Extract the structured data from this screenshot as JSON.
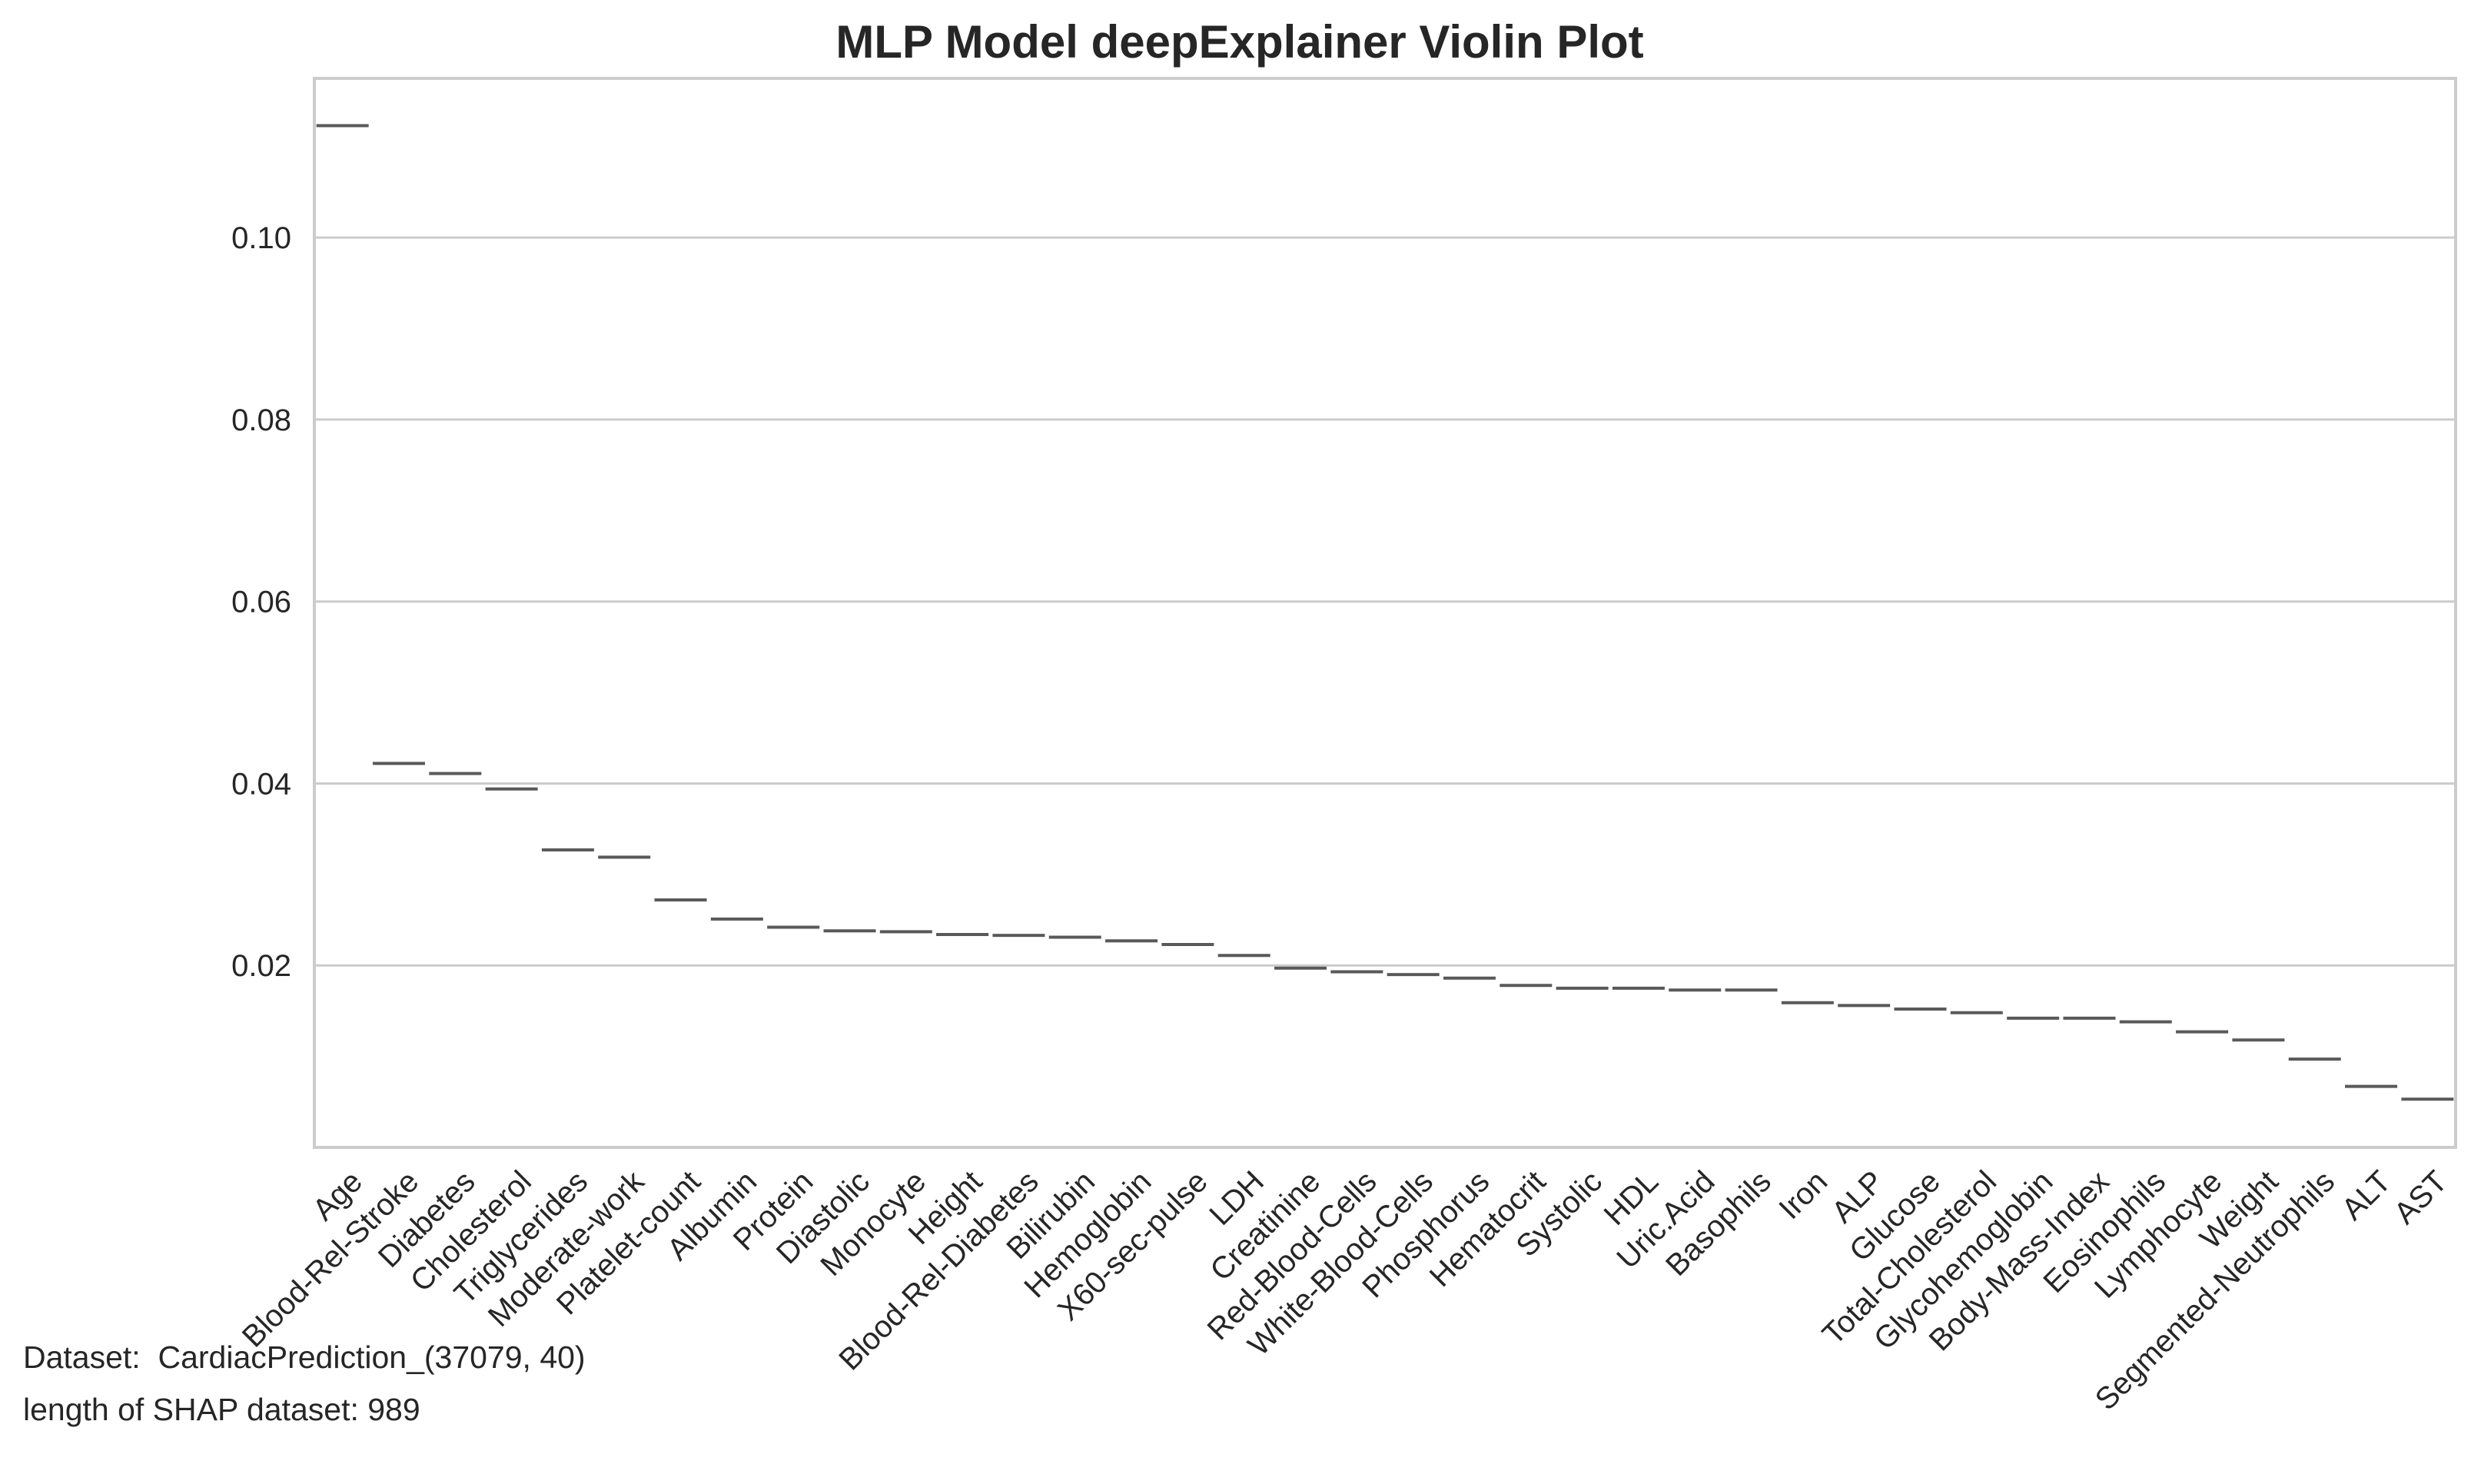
{
  "chart_data": {
    "type": "violin",
    "title": "MLP Model deepExplainer Violin Plot",
    "xlabel": "",
    "ylabel": "",
    "grid": true,
    "ylim": [
      0.0,
      0.1175
    ],
    "yticks": [
      0.02,
      0.04,
      0.06,
      0.08,
      0.1
    ],
    "ytick_labels": [
      "0.02",
      "0.04",
      "0.06",
      "0.08",
      "0.10"
    ],
    "categories": [
      "Age",
      "Blood-Rel-Stroke",
      "Diabetes",
      "Cholesterol",
      "Triglycerides",
      "Moderate-work",
      "Platelet-count",
      "Albumin",
      "Protein",
      "Diastolic",
      "Monocyte",
      "Height",
      "Blood-Rel-Diabetes",
      "Bilirubin",
      "Hemoglobin",
      "X60-sec-pulse",
      "LDH",
      "Creatinine",
      "Red-Blood-Cells",
      "White-Blood-Cells",
      "Phosphorus",
      "Hematocrit",
      "Systolic",
      "HDL",
      "Uric.Acid",
      "Basophils",
      "Iron",
      "ALP",
      "Glucose",
      "Total-Cholesterol",
      "Glycohemoglobin",
      "Body-Mass-Index",
      "Eosinophils",
      "Lymphocyte",
      "Weight",
      "Segmented-Neutrophils",
      "ALT",
      "AST"
    ],
    "values": [
      0.1123,
      0.0422,
      0.0411,
      0.0394,
      0.0327,
      0.0319,
      0.0272,
      0.0251,
      0.0242,
      0.0238,
      0.0237,
      0.0234,
      0.0233,
      0.0231,
      0.0227,
      0.0223,
      0.0211,
      0.0197,
      0.0193,
      0.019,
      0.0186,
      0.0178,
      0.0175,
      0.0175,
      0.0173,
      0.0173,
      0.0159,
      0.0156,
      0.0152,
      0.0148,
      0.0142,
      0.0142,
      0.0138,
      0.0127,
      0.0118,
      0.0097,
      0.0067,
      0.0053
    ],
    "mark_color": "#595959",
    "grid_color": "#cccccc",
    "frame_color": "#cccccc",
    "text_color": "#262626"
  },
  "footer": {
    "dataset_line": "Dataset:  CardiacPrediction_(37079, 40)",
    "length_line": "length of SHAP dataset: 989"
  }
}
